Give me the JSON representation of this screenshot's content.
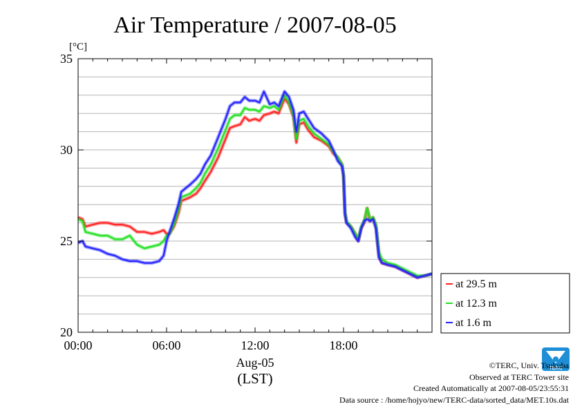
{
  "chart_data": {
    "type": "line",
    "title": "Air Temperature / 2007-08-05",
    "y_unit": "[°C]",
    "ylim": [
      20,
      35
    ],
    "y_ticks": [
      {
        "value": 20,
        "label": "20"
      },
      {
        "value": 25,
        "label": "25"
      },
      {
        "value": 30,
        "label": "30"
      },
      {
        "value": 35,
        "label": "35"
      }
    ],
    "xlim": [
      0,
      24
    ],
    "x_ticks": [
      {
        "value": 0,
        "label": "00:00"
      },
      {
        "value": 6,
        "label": "06:00"
      },
      {
        "value": 12,
        "label": "12:00"
      },
      {
        "value": 18,
        "label": "18:00"
      }
    ],
    "x_date_label": "Aug-05",
    "x_tz_label": "(LST)",
    "grid": true,
    "legend_position": "right",
    "series": [
      {
        "name": "at 29.5 m",
        "color": "#ff2020",
        "points": [
          [
            0,
            26.3
          ],
          [
            0.3,
            26.2
          ],
          [
            0.5,
            25.8
          ],
          [
            1,
            25.9
          ],
          [
            1.5,
            26.0
          ],
          [
            2,
            26.0
          ],
          [
            2.5,
            25.9
          ],
          [
            3,
            25.9
          ],
          [
            3.5,
            25.8
          ],
          [
            4,
            25.5
          ],
          [
            4.5,
            25.5
          ],
          [
            5,
            25.4
          ],
          [
            5.5,
            25.5
          ],
          [
            5.8,
            25.6
          ],
          [
            6.0,
            25.4
          ],
          [
            6.2,
            25.4
          ],
          [
            6.5,
            25.8
          ],
          [
            6.8,
            26.5
          ],
          [
            7,
            27.2
          ],
          [
            7.3,
            27.3
          ],
          [
            7.6,
            27.4
          ],
          [
            8,
            27.6
          ],
          [
            8.3,
            27.9
          ],
          [
            8.6,
            28.3
          ],
          [
            9,
            28.8
          ],
          [
            9.5,
            29.6
          ],
          [
            10,
            30.6
          ],
          [
            10.3,
            31.2
          ],
          [
            10.6,
            31.3
          ],
          [
            11,
            31.4
          ],
          [
            11.3,
            31.8
          ],
          [
            11.6,
            31.6
          ],
          [
            12,
            31.7
          ],
          [
            12.3,
            31.6
          ],
          [
            12.6,
            31.9
          ],
          [
            13,
            32.0
          ],
          [
            13.3,
            32.1
          ],
          [
            13.6,
            32.0
          ],
          [
            14,
            32.8
          ],
          [
            14.3,
            32.5
          ],
          [
            14.6,
            31.8
          ],
          [
            14.8,
            30.4
          ],
          [
            15,
            31.4
          ],
          [
            15.3,
            31.5
          ],
          [
            15.6,
            31.1
          ],
          [
            16,
            30.7
          ],
          [
            16.5,
            30.5
          ],
          [
            17,
            30.2
          ],
          [
            17.3,
            29.8
          ],
          [
            17.6,
            29.6
          ],
          [
            17.9,
            29.2
          ],
          [
            18,
            28.5
          ],
          [
            18.1,
            26.5
          ],
          [
            18.2,
            26.0
          ],
          [
            18.5,
            25.8
          ],
          [
            18.8,
            25.4
          ],
          [
            19,
            25.0
          ],
          [
            19.2,
            25.7
          ],
          [
            19.4,
            26.0
          ],
          [
            19.6,
            26.8
          ],
          [
            19.8,
            26.1
          ],
          [
            20,
            26.3
          ],
          [
            20.2,
            25.8
          ],
          [
            20.4,
            24.2
          ],
          [
            20.6,
            23.8
          ],
          [
            21,
            23.7
          ],
          [
            21.5,
            23.6
          ],
          [
            22,
            23.4
          ],
          [
            22.5,
            23.2
          ],
          [
            23,
            23.0
          ],
          [
            23.5,
            23.1
          ],
          [
            24,
            23.2
          ]
        ]
      },
      {
        "name": "at 12.3 m",
        "color": "#20e020",
        "points": [
          [
            0,
            26.2
          ],
          [
            0.3,
            26.1
          ],
          [
            0.5,
            25.5
          ],
          [
            1,
            25.4
          ],
          [
            1.5,
            25.3
          ],
          [
            2,
            25.3
          ],
          [
            2.5,
            25.1
          ],
          [
            3,
            25.1
          ],
          [
            3.5,
            25.3
          ],
          [
            4,
            24.8
          ],
          [
            4.5,
            24.6
          ],
          [
            5,
            24.7
          ],
          [
            5.5,
            24.8
          ],
          [
            5.8,
            25.0
          ],
          [
            6.0,
            25.3
          ],
          [
            6.2,
            25.4
          ],
          [
            6.5,
            25.9
          ],
          [
            6.8,
            26.7
          ],
          [
            7,
            27.4
          ],
          [
            7.3,
            27.5
          ],
          [
            7.6,
            27.6
          ],
          [
            8,
            27.9
          ],
          [
            8.3,
            28.2
          ],
          [
            8.6,
            28.7
          ],
          [
            9,
            29.2
          ],
          [
            9.5,
            30.1
          ],
          [
            10,
            31.1
          ],
          [
            10.3,
            31.7
          ],
          [
            10.6,
            31.9
          ],
          [
            11,
            31.9
          ],
          [
            11.3,
            32.3
          ],
          [
            11.6,
            32.2
          ],
          [
            12,
            32.2
          ],
          [
            12.3,
            32.1
          ],
          [
            12.6,
            32.4
          ],
          [
            13,
            32.3
          ],
          [
            13.3,
            32.4
          ],
          [
            13.6,
            32.2
          ],
          [
            14,
            33.0
          ],
          [
            14.3,
            32.6
          ],
          [
            14.6,
            31.9
          ],
          [
            14.8,
            30.6
          ],
          [
            15,
            31.6
          ],
          [
            15.3,
            31.7
          ],
          [
            15.6,
            31.3
          ],
          [
            16,
            30.9
          ],
          [
            16.5,
            30.6
          ],
          [
            17,
            30.3
          ],
          [
            17.3,
            29.9
          ],
          [
            17.6,
            29.6
          ],
          [
            17.9,
            29.2
          ],
          [
            18,
            28.6
          ],
          [
            18.1,
            26.6
          ],
          [
            18.2,
            26.1
          ],
          [
            18.5,
            25.8
          ],
          [
            18.8,
            25.4
          ],
          [
            19,
            25.1
          ],
          [
            19.2,
            25.8
          ],
          [
            19.4,
            26.1
          ],
          [
            19.6,
            26.8
          ],
          [
            19.8,
            26.2
          ],
          [
            20,
            26.3
          ],
          [
            20.2,
            25.9
          ],
          [
            20.4,
            24.4
          ],
          [
            20.6,
            24.0
          ],
          [
            21,
            23.8
          ],
          [
            21.5,
            23.7
          ],
          [
            22,
            23.5
          ],
          [
            22.5,
            23.3
          ],
          [
            23,
            23.1
          ],
          [
            23.5,
            23.1
          ],
          [
            24,
            23.2
          ]
        ]
      },
      {
        "name": "at 1.6 m",
        "color": "#2020ff",
        "points": [
          [
            0,
            24.9
          ],
          [
            0.3,
            25.0
          ],
          [
            0.5,
            24.7
          ],
          [
            1,
            24.6
          ],
          [
            1.5,
            24.5
          ],
          [
            2,
            24.3
          ],
          [
            2.5,
            24.2
          ],
          [
            3,
            24.0
          ],
          [
            3.5,
            23.9
          ],
          [
            4,
            23.9
          ],
          [
            4.5,
            23.8
          ],
          [
            5,
            23.8
          ],
          [
            5.5,
            23.9
          ],
          [
            5.8,
            24.2
          ],
          [
            6.0,
            25.0
          ],
          [
            6.2,
            25.5
          ],
          [
            6.5,
            26.2
          ],
          [
            6.8,
            27.0
          ],
          [
            7,
            27.7
          ],
          [
            7.3,
            27.9
          ],
          [
            7.6,
            28.1
          ],
          [
            8,
            28.4
          ],
          [
            8.3,
            28.7
          ],
          [
            8.6,
            29.2
          ],
          [
            9,
            29.7
          ],
          [
            9.5,
            30.7
          ],
          [
            10,
            31.7
          ],
          [
            10.3,
            32.4
          ],
          [
            10.6,
            32.6
          ],
          [
            11,
            32.6
          ],
          [
            11.3,
            32.9
          ],
          [
            11.6,
            32.7
          ],
          [
            12,
            32.7
          ],
          [
            12.3,
            32.6
          ],
          [
            12.6,
            33.2
          ],
          [
            13,
            32.5
          ],
          [
            13.3,
            32.6
          ],
          [
            13.6,
            32.4
          ],
          [
            14,
            33.2
          ],
          [
            14.3,
            32.9
          ],
          [
            14.6,
            32.2
          ],
          [
            14.8,
            31.0
          ],
          [
            15,
            32.0
          ],
          [
            15.3,
            32.1
          ],
          [
            15.6,
            31.7
          ],
          [
            16,
            31.2
          ],
          [
            16.5,
            30.9
          ],
          [
            17,
            30.5
          ],
          [
            17.3,
            30.0
          ],
          [
            17.6,
            29.4
          ],
          [
            17.9,
            29.1
          ],
          [
            18,
            28.6
          ],
          [
            18.1,
            26.5
          ],
          [
            18.2,
            26.0
          ],
          [
            18.5,
            25.7
          ],
          [
            18.8,
            25.2
          ],
          [
            19,
            25.0
          ],
          [
            19.2,
            25.7
          ],
          [
            19.4,
            26.1
          ],
          [
            19.6,
            26.2
          ],
          [
            19.8,
            26.1
          ],
          [
            20,
            26.2
          ],
          [
            20.2,
            25.7
          ],
          [
            20.4,
            24.1
          ],
          [
            20.6,
            23.8
          ],
          [
            21,
            23.7
          ],
          [
            21.5,
            23.6
          ],
          [
            22,
            23.4
          ],
          [
            22.5,
            23.2
          ],
          [
            23,
            23.0
          ],
          [
            23.5,
            23.1
          ],
          [
            24,
            23.2
          ]
        ]
      }
    ]
  },
  "credits": {
    "copyright": "©TERC, Univ. Tsukuba",
    "observed": "Observed at TERC Tower site",
    "created": "Created Automatically at 2007-08-05/23:55:31",
    "source": "Data source : /home/hojyo/new/TERC-data/sorted_data/MET.10s.dat",
    "logo_text": "TERC"
  },
  "colors": {
    "logo": "#1e8fd6"
  }
}
